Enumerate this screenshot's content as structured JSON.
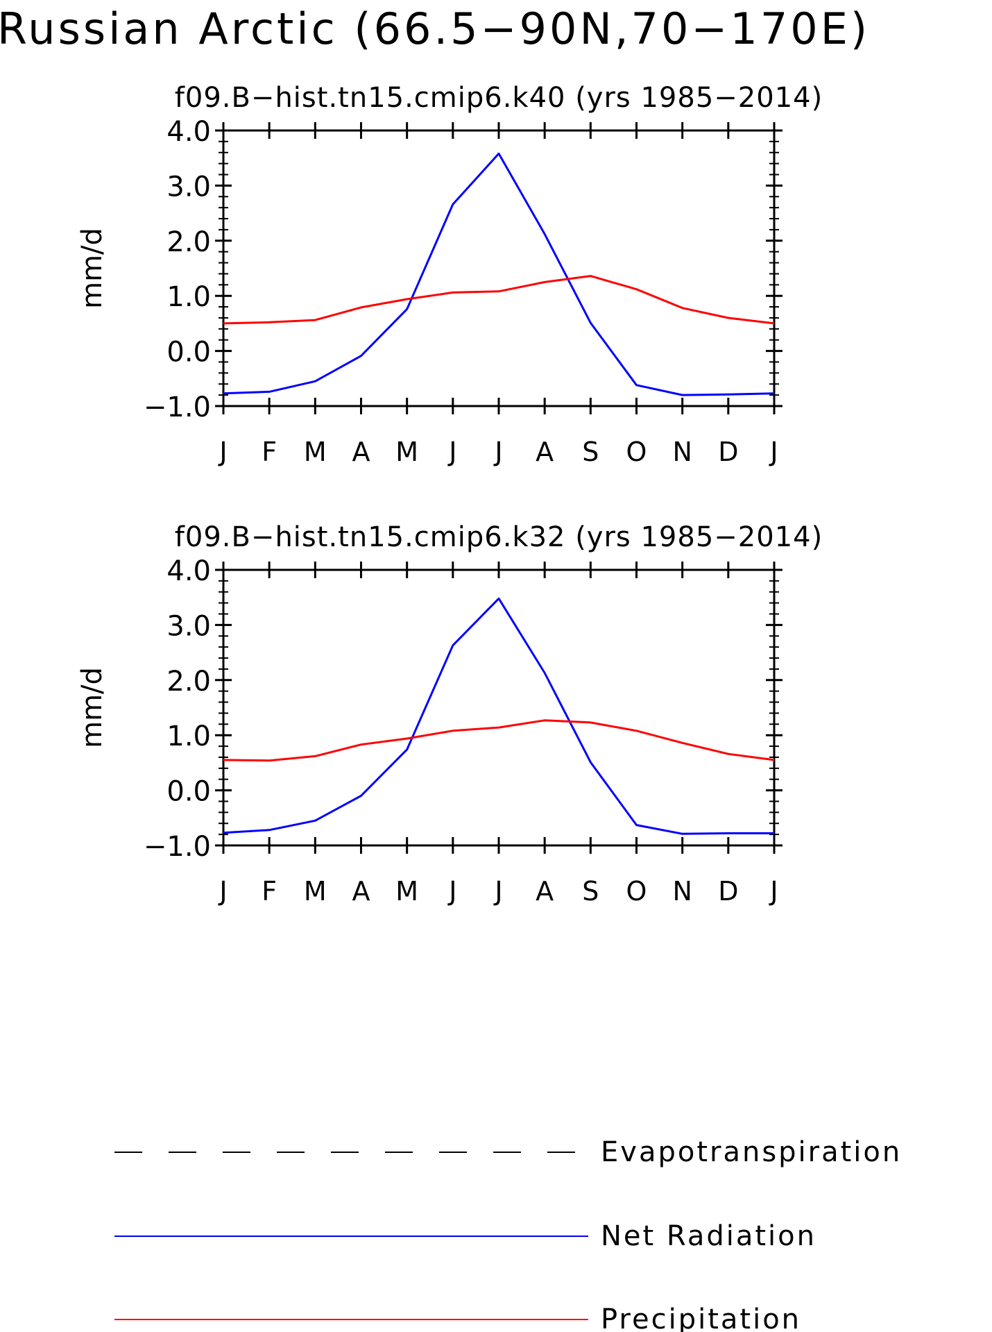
{
  "figure": {
    "title": "Russian Arctic (66.5−90N,70−170E)"
  },
  "colors": {
    "evapotranspiration": "#000000",
    "net_radiation": "#0000ff",
    "precipitation": "#ff0000"
  },
  "legend": {
    "placement": "bottom",
    "items": [
      {
        "label": "Evapotranspiration",
        "style": "dashed",
        "color": "#000000"
      },
      {
        "label": "Net Radiation",
        "style": "solid",
        "color": "#0000ff"
      },
      {
        "label": "Precipitation",
        "style": "solid",
        "color": "#ff0000"
      }
    ]
  },
  "chart_data": [
    {
      "type": "line",
      "title": "f09.B−hist.tn15.cmip6.k40 (yrs 1985−2014)",
      "xlabel": "",
      "ylabel": "mm/d",
      "categories": [
        "J",
        "F",
        "M",
        "A",
        "M",
        "J",
        "J",
        "A",
        "S",
        "O",
        "N",
        "D",
        "J"
      ],
      "ylim": [
        -1.0,
        4.0
      ],
      "yticks": [
        "4.0",
        "3.0",
        "2.0",
        "1.0",
        "0.0",
        "−1.0"
      ],
      "grid": false,
      "series": [
        {
          "name": "Net Radiation",
          "color": "#0000ff",
          "values": [
            -0.77,
            -0.74,
            -0.55,
            -0.09,
            0.76,
            2.66,
            3.58,
            2.12,
            0.51,
            -0.62,
            -0.8,
            -0.79,
            -0.77
          ]
        },
        {
          "name": "Precipitation",
          "color": "#ff0000",
          "values": [
            0.5,
            0.52,
            0.56,
            0.79,
            0.94,
            1.06,
            1.08,
            1.25,
            1.36,
            1.12,
            0.78,
            0.6,
            0.5
          ]
        }
      ]
    },
    {
      "type": "line",
      "title": "f09.B−hist.tn15.cmip6.k32 (yrs 1985−2014)",
      "xlabel": "",
      "ylabel": "mm/d",
      "categories": [
        "J",
        "F",
        "M",
        "A",
        "M",
        "J",
        "J",
        "A",
        "S",
        "O",
        "N",
        "D",
        "J"
      ],
      "ylim": [
        -1.0,
        4.0
      ],
      "yticks": [
        "4.0",
        "3.0",
        "2.0",
        "1.0",
        "0.0",
        "−1.0"
      ],
      "grid": false,
      "series": [
        {
          "name": "Net Radiation",
          "color": "#0000ff",
          "values": [
            -0.77,
            -0.72,
            -0.55,
            -0.1,
            0.74,
            2.63,
            3.48,
            2.13,
            0.51,
            -0.63,
            -0.79,
            -0.78,
            -0.78
          ]
        },
        {
          "name": "Precipitation",
          "color": "#ff0000",
          "values": [
            0.55,
            0.54,
            0.62,
            0.83,
            0.94,
            1.08,
            1.14,
            1.27,
            1.23,
            1.08,
            0.86,
            0.66,
            0.55
          ]
        }
      ]
    }
  ]
}
